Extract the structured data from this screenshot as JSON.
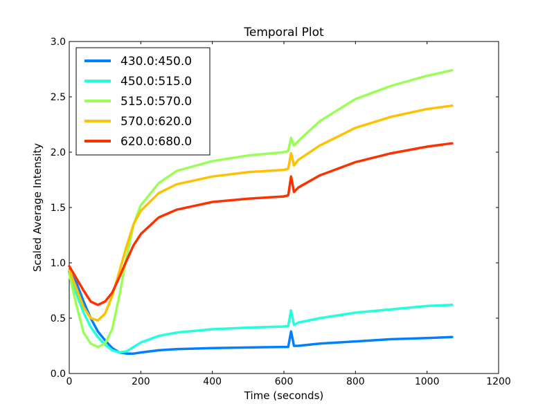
{
  "chart_data": {
    "type": "line",
    "title": "Temporal Plot",
    "xlabel": "Time (seconds)",
    "ylabel": "Scaled Average Intensity",
    "xlim": [
      0,
      1200
    ],
    "ylim": [
      0.0,
      3.0
    ],
    "xticks": [
      0,
      200,
      400,
      600,
      800,
      1000,
      1200
    ],
    "xtick_labels": [
      "0",
      "200",
      "400",
      "600",
      "800",
      "1000",
      "1200"
    ],
    "yticks": [
      0.0,
      0.5,
      1.0,
      1.5,
      2.0,
      2.5,
      3.0
    ],
    "ytick_labels": [
      "0.0",
      "0.5",
      "1.0",
      "1.5",
      "2.0",
      "2.5",
      "3.0"
    ],
    "grid": false,
    "legend_position": "top-left",
    "series": [
      {
        "name": "430.0:450.0",
        "color": "#0080ff",
        "x": [
          0,
          20,
          40,
          60,
          80,
          100,
          120,
          140,
          160,
          180,
          200,
          250,
          300,
          400,
          500,
          600,
          612,
          620,
          628,
          640,
          700,
          800,
          900,
          1000,
          1070
        ],
        "y": [
          0.92,
          0.82,
          0.65,
          0.5,
          0.38,
          0.3,
          0.23,
          0.19,
          0.18,
          0.18,
          0.19,
          0.21,
          0.22,
          0.23,
          0.235,
          0.24,
          0.24,
          0.38,
          0.25,
          0.25,
          0.27,
          0.29,
          0.31,
          0.32,
          0.33
        ]
      },
      {
        "name": "450.0:515.0",
        "color": "#22ffdd",
        "x": [
          0,
          20,
          40,
          60,
          80,
          100,
          120,
          140,
          160,
          180,
          200,
          250,
          300,
          400,
          500,
          600,
          612,
          620,
          628,
          640,
          700,
          800,
          900,
          1000,
          1070
        ],
        "y": [
          0.9,
          0.72,
          0.55,
          0.42,
          0.33,
          0.26,
          0.21,
          0.19,
          0.2,
          0.24,
          0.28,
          0.34,
          0.37,
          0.4,
          0.415,
          0.425,
          0.43,
          0.57,
          0.44,
          0.46,
          0.5,
          0.55,
          0.58,
          0.61,
          0.62
        ]
      },
      {
        "name": "515.0:570.0",
        "color": "#99ff55",
        "x": [
          0,
          20,
          40,
          60,
          80,
          100,
          120,
          140,
          160,
          180,
          200,
          250,
          300,
          400,
          500,
          600,
          612,
          620,
          628,
          640,
          700,
          800,
          900,
          1000,
          1070
        ],
        "y": [
          0.9,
          0.62,
          0.37,
          0.27,
          0.24,
          0.27,
          0.4,
          0.7,
          1.05,
          1.35,
          1.52,
          1.72,
          1.83,
          1.92,
          1.97,
          2.0,
          2.01,
          2.13,
          2.06,
          2.1,
          2.28,
          2.48,
          2.6,
          2.69,
          2.74
        ]
      },
      {
        "name": "570.0:620.0",
        "color": "#ffc000",
        "x": [
          0,
          20,
          40,
          60,
          80,
          100,
          120,
          140,
          160,
          180,
          200,
          250,
          300,
          400,
          500,
          600,
          612,
          620,
          628,
          640,
          700,
          800,
          900,
          1000,
          1070
        ],
        "y": [
          0.93,
          0.77,
          0.6,
          0.5,
          0.48,
          0.54,
          0.7,
          0.92,
          1.15,
          1.35,
          1.47,
          1.63,
          1.71,
          1.78,
          1.82,
          1.84,
          1.85,
          1.99,
          1.88,
          1.93,
          2.06,
          2.22,
          2.32,
          2.39,
          2.42
        ]
      },
      {
        "name": "620.0:680.0",
        "color": "#ff3000",
        "x": [
          0,
          20,
          40,
          60,
          80,
          100,
          120,
          140,
          160,
          180,
          200,
          250,
          300,
          400,
          500,
          600,
          612,
          620,
          628,
          640,
          700,
          800,
          900,
          1000,
          1070
        ],
        "y": [
          0.97,
          0.86,
          0.75,
          0.65,
          0.62,
          0.65,
          0.73,
          0.87,
          1.02,
          1.16,
          1.26,
          1.41,
          1.48,
          1.55,
          1.58,
          1.6,
          1.61,
          1.78,
          1.64,
          1.68,
          1.79,
          1.91,
          1.99,
          2.05,
          2.08
        ]
      }
    ]
  }
}
